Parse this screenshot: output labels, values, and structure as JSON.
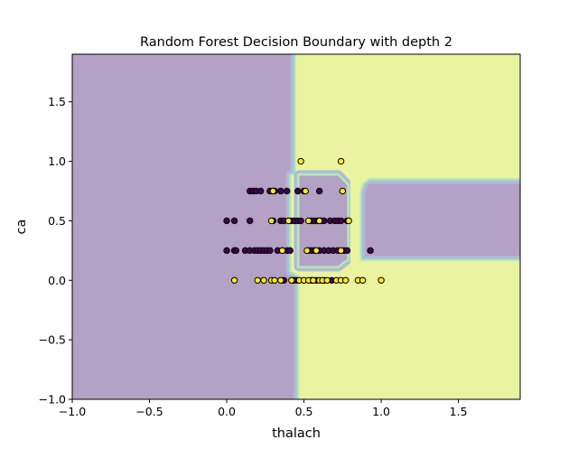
{
  "chart_data": {
    "type": "scatter",
    "title": "Random Forest Decision Boundary with depth 2",
    "xlabel": "thalach",
    "ylabel": "ca",
    "xlim": [
      -1.0,
      1.9
    ],
    "ylim": [
      -1.0,
      1.9
    ],
    "xticks": [
      -1.0,
      -0.5,
      0.0,
      0.5,
      1.0,
      1.5
    ],
    "xtick_labels": [
      "−1.0",
      "−0.5",
      "0.0",
      "0.5",
      "1.0",
      "1.5"
    ],
    "yticks": [
      -1.0,
      -0.5,
      0.0,
      0.5,
      1.0,
      1.5
    ],
    "ytick_labels": [
      "−1.0",
      "−0.5",
      "0.0",
      "0.5",
      "1.0",
      "1.5"
    ],
    "grid": false,
    "legend": "none",
    "colors": {
      "class0": "#440154",
      "class1": "#fde725",
      "region0": "#b3a1c6",
      "region1": "#e9f3a0",
      "boundary_band": [
        "#c3b9d0",
        "#a7b9d8",
        "#9ec9d6",
        "#a6dcc8",
        "#c7e8b0"
      ]
    },
    "decision_regions": {
      "class1_regions": [
        "x >= 0.48",
        "0.42 <= x < 0.48 and y < 0.88 excluding x < 0.47 for 0.1 <= y <= 0.72"
      ],
      "class0_regions": [
        "x < 0.42",
        "0.93 <= x < 1.9 and 0.17 <= y <= 0.82"
      ],
      "notch": "between x 0.72 and 0.93 the class1 region narrows to a channel around x 0.78-0.91 for y 0.1-0.82"
    },
    "series": [
      {
        "name": "0",
        "points": [
          [
            0.0,
            0.5
          ],
          [
            0.05,
            0.5
          ],
          [
            0.0,
            0.25
          ],
          [
            0.05,
            0.25
          ],
          [
            0.06,
            0.25
          ],
          [
            0.12,
            0.25
          ],
          [
            0.15,
            0.25
          ],
          [
            0.18,
            0.25
          ],
          [
            0.2,
            0.25
          ],
          [
            0.22,
            0.25
          ],
          [
            0.24,
            0.25
          ],
          [
            0.26,
            0.25
          ],
          [
            0.28,
            0.25
          ],
          [
            0.33,
            0.25
          ],
          [
            0.36,
            0.25
          ],
          [
            0.39,
            0.25
          ],
          [
            0.41,
            0.25
          ],
          [
            0.53,
            0.25
          ],
          [
            0.55,
            0.25
          ],
          [
            0.57,
            0.25
          ],
          [
            0.6,
            0.25
          ],
          [
            0.63,
            0.25
          ],
          [
            0.66,
            0.25
          ],
          [
            0.69,
            0.25
          ],
          [
            0.72,
            0.25
          ],
          [
            0.76,
            0.25
          ],
          [
            0.78,
            0.25
          ],
          [
            0.93,
            0.25
          ],
          [
            0.15,
            0.5
          ],
          [
            0.3,
            0.5
          ],
          [
            0.35,
            0.5
          ],
          [
            0.37,
            0.5
          ],
          [
            0.42,
            0.5
          ],
          [
            0.44,
            0.5
          ],
          [
            0.46,
            0.5
          ],
          [
            0.48,
            0.5
          ],
          [
            0.55,
            0.5
          ],
          [
            0.57,
            0.5
          ],
          [
            0.59,
            0.5
          ],
          [
            0.61,
            0.5
          ],
          [
            0.63,
            0.5
          ],
          [
            0.67,
            0.5
          ],
          [
            0.7,
            0.5
          ],
          [
            0.72,
            0.5
          ],
          [
            0.74,
            0.5
          ],
          [
            0.78,
            0.5
          ],
          [
            0.15,
            0.75
          ],
          [
            0.17,
            0.75
          ],
          [
            0.19,
            0.75
          ],
          [
            0.22,
            0.75
          ],
          [
            0.28,
            0.75
          ],
          [
            0.31,
            0.75
          ],
          [
            0.35,
            0.75
          ],
          [
            0.39,
            0.75
          ],
          [
            0.46,
            0.75
          ],
          [
            0.5,
            0.75
          ],
          [
            0.6,
            0.75
          ],
          [
            0.37,
            0.0
          ],
          [
            0.43,
            0.0
          ],
          [
            0.45,
            0.0
          ],
          [
            0.55,
            0.0
          ],
          [
            0.58,
            0.0
          ],
          [
            0.63,
            0.0
          ],
          [
            0.68,
            0.0
          ]
        ]
      },
      {
        "name": "1",
        "points": [
          [
            0.48,
            1.0
          ],
          [
            0.74,
            1.0
          ],
          [
            0.3,
            0.75
          ],
          [
            0.51,
            0.75
          ],
          [
            0.75,
            0.75
          ],
          [
            0.29,
            0.5
          ],
          [
            0.4,
            0.5
          ],
          [
            0.53,
            0.5
          ],
          [
            0.6,
            0.5
          ],
          [
            0.79,
            0.5
          ],
          [
            0.36,
            0.25
          ],
          [
            0.52,
            0.25
          ],
          [
            0.58,
            0.25
          ],
          [
            0.74,
            0.25
          ],
          [
            0.05,
            0.0
          ],
          [
            0.2,
            0.0
          ],
          [
            0.24,
            0.0
          ],
          [
            0.29,
            0.0
          ],
          [
            0.31,
            0.0
          ],
          [
            0.35,
            0.0
          ],
          [
            0.42,
            0.0
          ],
          [
            0.47,
            0.0
          ],
          [
            0.5,
            0.0
          ],
          [
            0.53,
            0.0
          ],
          [
            0.56,
            0.0
          ],
          [
            0.6,
            0.0
          ],
          [
            0.62,
            0.0
          ],
          [
            0.65,
            0.0
          ],
          [
            0.71,
            0.0
          ],
          [
            0.74,
            0.0
          ],
          [
            0.77,
            0.0
          ],
          [
            0.85,
            0.0
          ],
          [
            0.88,
            0.0
          ],
          [
            1.0,
            0.0
          ]
        ]
      }
    ]
  }
}
